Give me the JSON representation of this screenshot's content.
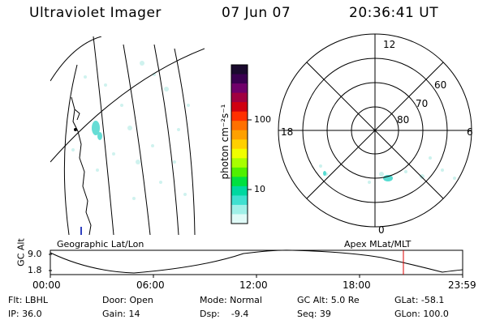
{
  "header": {
    "instrument": "Ultraviolet Imager",
    "date": "07 Jun 07",
    "time": "20:36:41 UT"
  },
  "left_panel": {
    "label": "Geographic Lat/Lon"
  },
  "right_panel": {
    "label": "Apex  MLat/MLT",
    "mlt_labels": [
      "12",
      "18",
      "6",
      "0"
    ],
    "lat_labels": [
      "60",
      "70",
      "80"
    ]
  },
  "colorbar": {
    "unit_label": "photon cm⁻²s⁻¹",
    "ticks": [
      "100",
      "10"
    ],
    "colors": [
      "#1a0a2e",
      "#3a0050",
      "#70006a",
      "#a00040",
      "#d00010",
      "#ff3000",
      "#ff7000",
      "#ffa000",
      "#ffd000",
      "#f0ff00",
      "#a8ff00",
      "#50f000",
      "#00e040",
      "#00d8a0",
      "#40e0d0",
      "#a0f0e8",
      "#e0fbf8"
    ]
  },
  "timeline": {
    "ylabel": "GC Alt",
    "y_ticks": [
      "9.0",
      "1.8"
    ],
    "x_ticks": [
      "00:00",
      "06:00",
      "12:00",
      "18:00",
      "23:59"
    ],
    "marker_color": "#dd0000"
  },
  "info": {
    "row1": [
      "Flt: LBHL",
      "Door: Open",
      "Mode: Normal",
      "GC Alt: 5.0 Re",
      "GLat: -58.1"
    ],
    "row2": [
      "IP: 36.0",
      "Gain: 14",
      "Dsp:    -9.4",
      "Seq: 39",
      "GLon: 100.0"
    ]
  }
}
